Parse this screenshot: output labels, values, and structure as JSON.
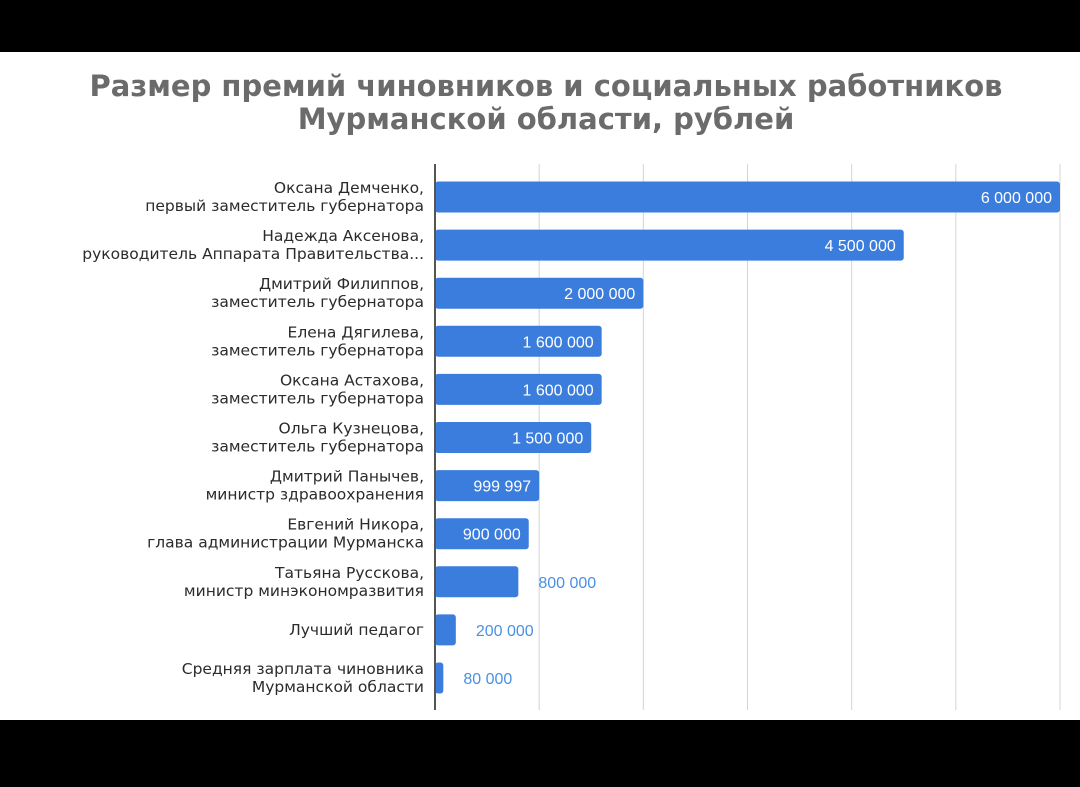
{
  "chart_data": {
    "type": "bar",
    "orientation": "horizontal",
    "title": [
      "Размер премий чиновников и социальных работников",
      "Мурманской области, рублей"
    ],
    "xlim": [
      0,
      6000000
    ],
    "grid": true,
    "legend": "none",
    "bar_color": "#3b7ddd",
    "categories": [
      [
        "Оксана Демченко,",
        "первый заместитель губернатора"
      ],
      [
        "Надежда Аксенова,",
        "руководитель Аппарата Правительства..."
      ],
      [
        "Дмитрий Филиппов,",
        "заместитель губернатора"
      ],
      [
        "Елена Дягилева,",
        "заместитель губернатора"
      ],
      [
        "Оксана Астахова,",
        "заместитель губернатора"
      ],
      [
        "Ольга Кузнецова,",
        "заместитель губернатора"
      ],
      [
        "Дмитрий Панычев,",
        "министр здравоохранения"
      ],
      [
        "Евгений Никора,",
        "глава администрации Мурманска"
      ],
      [
        "Татьяна Русскова,",
        "министр минэкономразвития"
      ],
      [
        "Лучший педагог"
      ],
      [
        "Средняя зарплата чиновника",
        "Мурманской области"
      ]
    ],
    "values": [
      6000000,
      4500000,
      2000000,
      1600000,
      1600000,
      1500000,
      999997,
      900000,
      800000,
      200000,
      80000
    ],
    "value_labels": [
      "6 000 000",
      "4 500 000",
      "2 000 000",
      "1 600 000",
      "1 600 000",
      "1 500 000",
      "999 997",
      "900 000",
      "800 000",
      "200 000",
      "80 000"
    ]
  }
}
